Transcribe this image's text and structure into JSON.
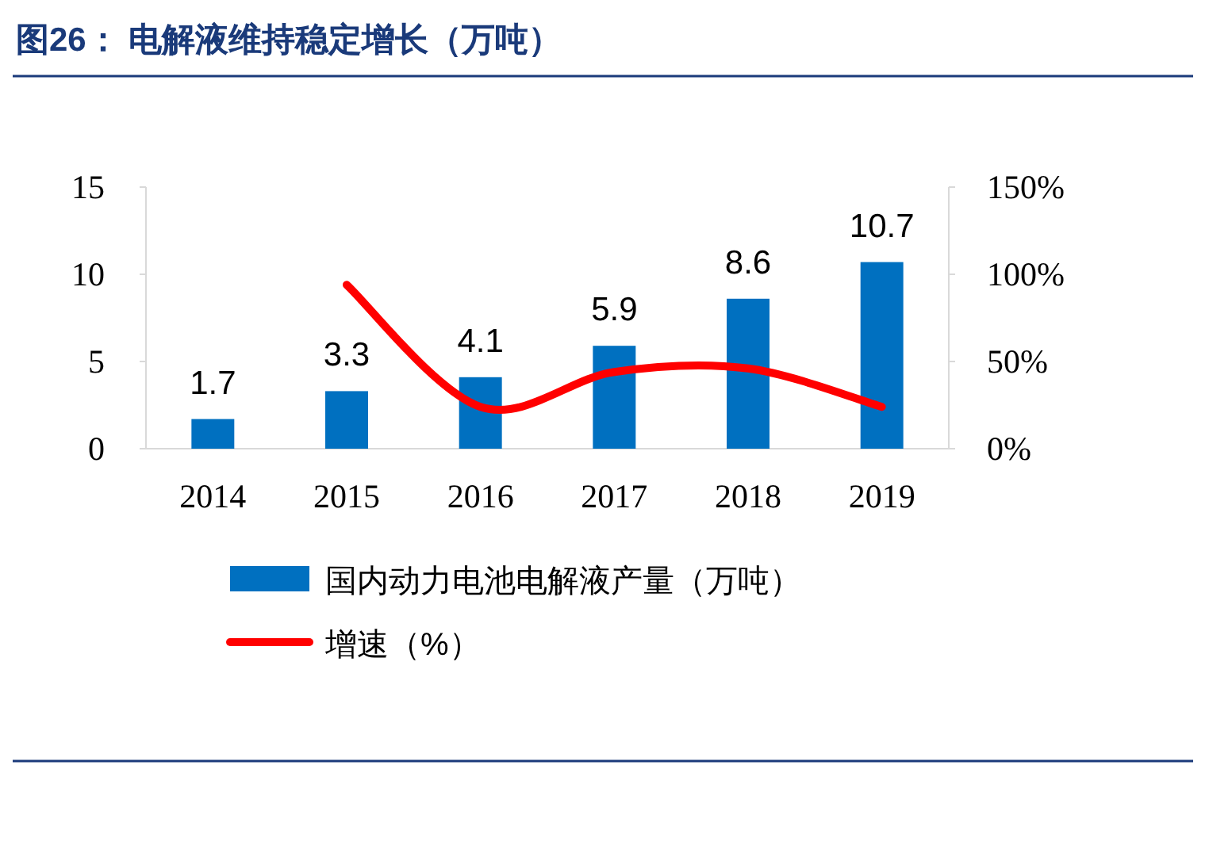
{
  "chart_data": {
    "type": "bar",
    "title": "图26：  电解液维持稳定增长（万吨）",
    "categories": [
      "2014",
      "2015",
      "2016",
      "2017",
      "2018",
      "2019"
    ],
    "series": [
      {
        "name": "国内动力电池电解液产量（万吨）",
        "color": "#0070c0",
        "values": [
          1.7,
          3.3,
          4.1,
          5.9,
          8.6,
          10.7
        ],
        "value_labels": [
          "1.7",
          "3.3",
          "4.1",
          "5.9",
          "8.6",
          "10.7"
        ]
      },
      {
        "name": "增速（%）",
        "type": "line",
        "axis": "y2",
        "color": "#ff0000",
        "values": [
          null,
          94,
          24,
          44,
          46,
          24
        ]
      }
    ],
    "ylim": [
      0,
      15
    ],
    "yticks": [
      0,
      5,
      10,
      15
    ],
    "y2lim": [
      0,
      150
    ],
    "y2ticks": [
      {
        "value": 0,
        "label": "0%"
      },
      {
        "value": 50,
        "label": "50%"
      },
      {
        "value": 100,
        "label": "100%"
      },
      {
        "value": 150,
        "label": "150%"
      }
    ],
    "legend": "bottom",
    "grid": false
  }
}
